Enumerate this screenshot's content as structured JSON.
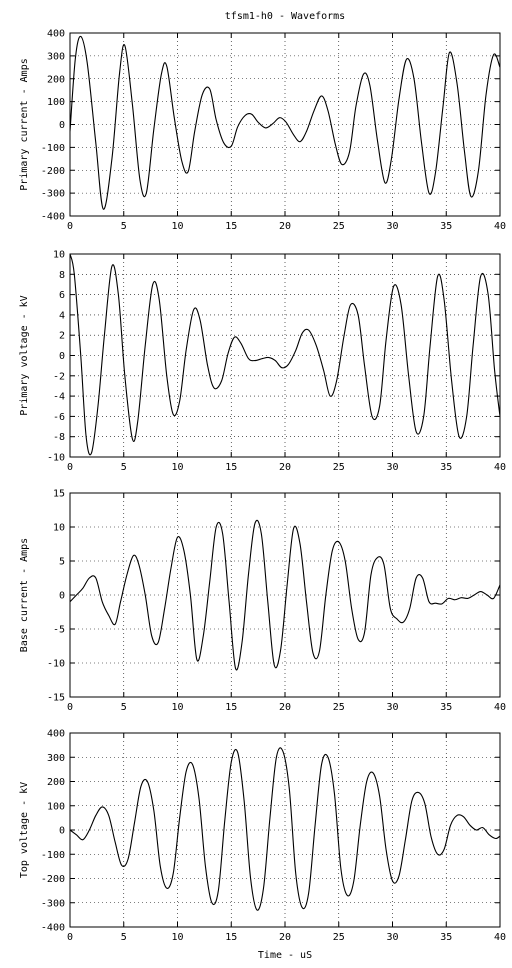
{
  "figure_title": "tfsm1-h0 - Waveforms",
  "chart_data": [
    {
      "type": "line",
      "title": "",
      "xlabel": "",
      "ylabel": "Primary current - Amps",
      "xlim": [
        0,
        40
      ],
      "ylim": [
        -400,
        400
      ],
      "xticks": [
        0,
        5,
        10,
        15,
        20,
        25,
        30,
        35,
        40
      ],
      "yticks": [
        -400,
        -300,
        -200,
        -100,
        0,
        100,
        200,
        300,
        400
      ],
      "grid": true,
      "series": [
        {
          "x": [
            0,
            0.5,
            1.0,
            1.6,
            2.4,
            3.1,
            3.9,
            4.6,
            5.1,
            5.8,
            6.5,
            7.1,
            7.8,
            8.5,
            9.0,
            9.7,
            10.4,
            11.0,
            11.6,
            12.3,
            13.0,
            13.6,
            14.3,
            15.0,
            15.6,
            16.3,
            16.9,
            17.5,
            18.2,
            18.9,
            19.5,
            20.1,
            20.8,
            21.4,
            22.0,
            22.7,
            23.4,
            24.0,
            24.7,
            25.3,
            26.0,
            26.6,
            27.3,
            27.9,
            28.6,
            29.3,
            29.9,
            30.6,
            31.3,
            32.0,
            32.7,
            33.4,
            34.0,
            34.7,
            35.3,
            36.0,
            36.7,
            37.3,
            38.0,
            38.7,
            39.4,
            40.0
          ],
          "y": [
            -30,
            290,
            385,
            270,
            -80,
            -370,
            -150,
            220,
            345,
            90,
            -240,
            -300,
            -20,
            220,
            255,
            30,
            -160,
            -205,
            -30,
            130,
            155,
            20,
            -80,
            -95,
            -10,
            40,
            45,
            10,
            -15,
            5,
            30,
            10,
            -45,
            -75,
            -30,
            60,
            125,
            60,
            -90,
            -175,
            -120,
            80,
            220,
            170,
            -70,
            -255,
            -150,
            110,
            285,
            200,
            -80,
            -300,
            -210,
            80,
            315,
            180,
            -120,
            -315,
            -200,
            130,
            305,
            250
          ]
        }
      ]
    },
    {
      "type": "line",
      "title": "",
      "xlabel": "",
      "ylabel": "Primary voltage - kV",
      "xlim": [
        0,
        40
      ],
      "ylim": [
        -10,
        10
      ],
      "xticks": [
        0,
        5,
        10,
        15,
        20,
        25,
        30,
        35,
        40
      ],
      "yticks": [
        -10,
        -8,
        -6,
        -4,
        -2,
        0,
        2,
        4,
        6,
        8,
        10
      ],
      "grid": true,
      "series": [
        {
          "x": [
            0,
            0.4,
            1.0,
            1.5,
            2.0,
            2.6,
            3.2,
            3.9,
            4.5,
            5.1,
            5.8,
            6.3,
            7.0,
            7.7,
            8.3,
            9.0,
            9.6,
            10.2,
            10.8,
            11.5,
            12.1,
            12.8,
            13.4,
            14.1,
            14.7,
            15.3,
            15.9,
            16.6,
            17.2,
            17.9,
            18.5,
            19.1,
            19.7,
            20.3,
            21.0,
            21.6,
            22.2,
            22.9,
            23.6,
            24.2,
            24.8,
            25.5,
            26.1,
            26.8,
            27.4,
            28.1,
            28.8,
            29.4,
            30.1,
            30.8,
            31.5,
            32.2,
            32.9,
            33.5,
            34.2,
            34.8,
            35.5,
            36.2,
            36.9,
            37.5,
            38.2,
            38.9,
            39.5,
            40.0
          ],
          "y": [
            10,
            8,
            0,
            -8,
            -9.6,
            -5,
            2,
            8.8,
            6,
            -2,
            -8.2,
            -6.5,
            1,
            7,
            5.5,
            -2,
            -5.8,
            -4.5,
            0.5,
            4.5,
            3.5,
            -1,
            -3.2,
            -2.5,
            0.2,
            1.8,
            1.2,
            -0.3,
            -0.5,
            -0.3,
            -0.2,
            -0.5,
            -1.2,
            -0.9,
            0.5,
            2.2,
            2.5,
            1,
            -1.5,
            -4,
            -2.5,
            2,
            5,
            4,
            -1,
            -6,
            -5,
            1.5,
            6.8,
            5,
            -2,
            -7.5,
            -6,
            1,
            7.8,
            5.5,
            -2.5,
            -8,
            -6,
            1,
            7.8,
            6,
            -1.5,
            -6
          ]
        }
      ]
    },
    {
      "type": "line",
      "title": "",
      "xlabel": "",
      "ylabel": "Base current - Amps",
      "xlim": [
        0,
        40
      ],
      "ylim": [
        -15,
        15
      ],
      "xticks": [
        0,
        5,
        10,
        15,
        20,
        25,
        30,
        35,
        40
      ],
      "yticks": [
        -15,
        -10,
        -5,
        0,
        5,
        10,
        15
      ],
      "grid": true,
      "series": [
        {
          "x": [
            0,
            0.6,
            1.2,
            1.8,
            2.4,
            3.0,
            3.6,
            4.2,
            4.7,
            5.3,
            5.9,
            6.4,
            7.0,
            7.6,
            8.2,
            8.8,
            9.4,
            10.0,
            10.6,
            11.2,
            11.8,
            12.4,
            13.0,
            13.6,
            14.2,
            14.8,
            15.4,
            16.0,
            16.6,
            17.2,
            17.8,
            18.4,
            19.0,
            19.6,
            20.2,
            20.8,
            21.4,
            22.0,
            22.6,
            23.2,
            23.8,
            24.4,
            25.0,
            25.6,
            26.2,
            26.8,
            27.4,
            28.0,
            28.6,
            29.2,
            29.8,
            30.4,
            31.0,
            31.6,
            32.2,
            32.8,
            33.4,
            34.0,
            34.6,
            35.2,
            35.8,
            36.4,
            37.0,
            37.6,
            38.2,
            38.8,
            39.4,
            40.0
          ],
          "y": [
            -1,
            0,
            1,
            2.5,
            2.5,
            -1,
            -3,
            -4.3,
            -1,
            3,
            5.8,
            4.5,
            0,
            -6,
            -7,
            -2,
            4,
            8.5,
            6.5,
            0,
            -9.5,
            -6,
            2,
            10,
            9,
            -1,
            -10.8,
            -7,
            3,
            10.5,
            9,
            -1,
            -10.3,
            -8,
            1.5,
            9.8,
            7.5,
            -1,
            -8.5,
            -8.3,
            0,
            6.5,
            7.8,
            5,
            -2,
            -6.5,
            -5.5,
            3,
            5.5,
            4.5,
            -2,
            -3.5,
            -4,
            -2,
            2.5,
            2.5,
            -1,
            -1.2,
            -1.3,
            -0.5,
            -0.7,
            -0.4,
            -0.5,
            0,
            0.5,
            0,
            -0.5,
            1.5
          ]
        }
      ]
    },
    {
      "type": "line",
      "title": "",
      "xlabel": "Time - uS",
      "ylabel": "Top voltage - kV",
      "xlim": [
        0,
        40
      ],
      "ylim": [
        -400,
        400
      ],
      "xticks": [
        0,
        5,
        10,
        15,
        20,
        25,
        30,
        35,
        40
      ],
      "yticks": [
        -400,
        -300,
        -200,
        -100,
        0,
        100,
        200,
        300,
        400
      ],
      "grid": true,
      "series": [
        {
          "x": [
            0,
            0.6,
            1.2,
            1.8,
            2.4,
            3.0,
            3.6,
            4.2,
            4.8,
            5.4,
            6.0,
            6.6,
            7.2,
            7.8,
            8.4,
            9.0,
            9.6,
            10.2,
            10.8,
            11.4,
            12.0,
            12.6,
            13.2,
            13.8,
            14.4,
            15.0,
            15.6,
            16.2,
            16.8,
            17.4,
            18.0,
            18.6,
            19.2,
            19.8,
            20.4,
            21.0,
            21.6,
            22.2,
            22.8,
            23.4,
            24.0,
            24.6,
            25.2,
            25.8,
            26.4,
            27.0,
            27.6,
            28.2,
            28.8,
            29.4,
            30.0,
            30.6,
            31.2,
            31.8,
            32.4,
            33.0,
            33.6,
            34.2,
            34.8,
            35.4,
            36.0,
            36.6,
            37.2,
            37.8,
            38.4,
            39.0,
            39.6,
            40.0
          ],
          "y": [
            0,
            -20,
            -40,
            0,
            60,
            95,
            60,
            -50,
            -145,
            -120,
            30,
            180,
            200,
            80,
            -150,
            -240,
            -180,
            50,
            240,
            270,
            130,
            -150,
            -300,
            -250,
            40,
            280,
            320,
            120,
            -200,
            -330,
            -240,
            50,
            300,
            325,
            170,
            -180,
            -320,
            -260,
            20,
            270,
            300,
            150,
            -160,
            -270,
            -210,
            20,
            200,
            235,
            140,
            -80,
            -210,
            -190,
            -40,
            120,
            155,
            110,
            -30,
            -100,
            -80,
            20,
            60,
            55,
            20,
            0,
            10,
            -20,
            -35,
            -25
          ]
        }
      ]
    }
  ]
}
